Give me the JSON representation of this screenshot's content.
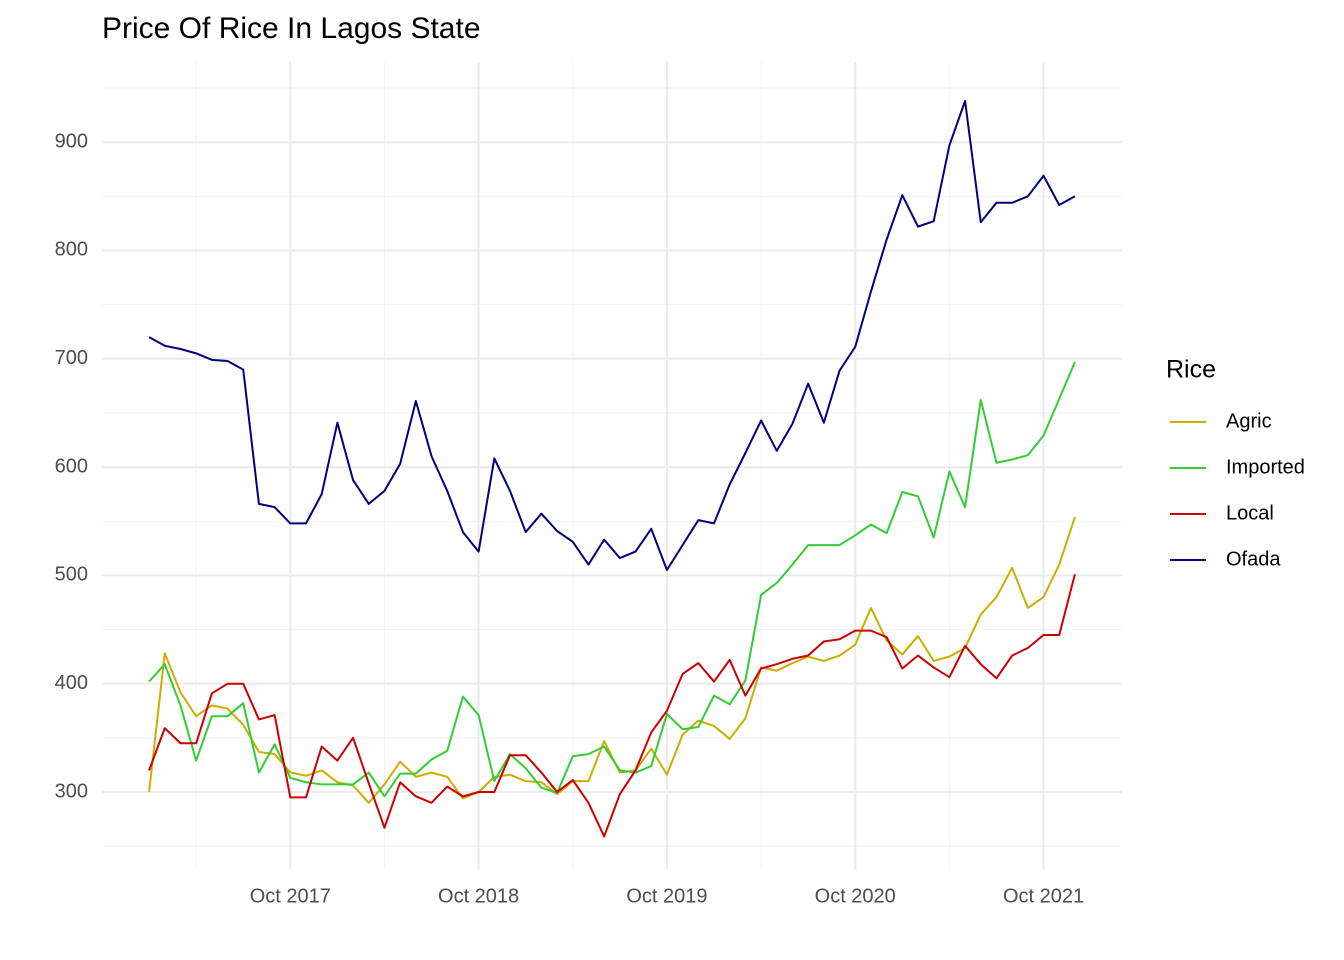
{
  "chart_data": {
    "type": "line",
    "title": "Price Of Rice In Lagos State",
    "x": [
      "2017-01",
      "2017-02",
      "2017-03",
      "2017-04",
      "2017-05",
      "2017-06",
      "2017-07",
      "2017-08",
      "2017-09",
      "2017-10",
      "2017-11",
      "2017-12",
      "2018-01",
      "2018-02",
      "2018-03",
      "2018-04",
      "2018-05",
      "2018-06",
      "2018-07",
      "2018-08",
      "2018-09",
      "2018-10",
      "2018-11",
      "2018-12",
      "2019-01",
      "2019-02",
      "2019-03",
      "2019-04",
      "2019-05",
      "2019-06",
      "2019-07",
      "2019-08",
      "2019-09",
      "2019-10",
      "2019-11",
      "2019-12",
      "2020-01",
      "2020-02",
      "2020-03",
      "2020-04",
      "2020-05",
      "2020-06",
      "2020-07",
      "2020-08",
      "2020-09",
      "2020-10",
      "2020-11",
      "2020-12",
      "2021-01",
      "2021-02",
      "2021-03",
      "2021-04",
      "2021-05",
      "2021-06",
      "2021-07",
      "2021-08",
      "2021-09",
      "2021-10",
      "2021-11",
      "2021-12"
    ],
    "legend_title": "Rice",
    "series": [
      {
        "name": "Agric",
        "color": "#cdad00",
        "values": [
          300,
          428,
          392,
          370,
          380,
          377,
          362,
          337,
          335,
          318,
          315,
          320,
          309,
          306,
          290,
          307,
          328,
          314,
          318,
          314,
          294,
          300,
          314,
          316,
          310,
          309,
          298,
          310,
          310,
          347,
          318,
          320,
          340,
          316,
          353,
          366,
          361,
          349,
          368,
          415,
          412,
          419,
          425,
          421,
          426,
          436,
          470,
          440,
          427,
          444,
          421,
          425,
          433,
          464,
          480,
          507,
          470,
          480,
          510,
          554
        ]
      },
      {
        "name": "Imported",
        "color": "#32cd32",
        "values": [
          402,
          418,
          380,
          329,
          370,
          370,
          382,
          318,
          344,
          313,
          309,
          307,
          307,
          307,
          318,
          296,
          317,
          317,
          330,
          338,
          388,
          371,
          310,
          335,
          322,
          304,
          299,
          333,
          335,
          342,
          320,
          318,
          324,
          372,
          358,
          360,
          389,
          381,
          403,
          482,
          493,
          510,
          528,
          528,
          528,
          537,
          547,
          539,
          577,
          573,
          535,
          596,
          563,
          662,
          604,
          607,
          611,
          629,
          663,
          697
        ]
      },
      {
        "name": "Local",
        "color": "#cd0000",
        "values": [
          320,
          359,
          345,
          345,
          391,
          400,
          400,
          367,
          371,
          295,
          295,
          342,
          329,
          350,
          308,
          267,
          309,
          296,
          290,
          305,
          296,
          300,
          300,
          334,
          334,
          318,
          300,
          311,
          290,
          259,
          298,
          320,
          355,
          375,
          409,
          419,
          402,
          422,
          389,
          414,
          418,
          423,
          426,
          439,
          441,
          449,
          449,
          443,
          414,
          426,
          415,
          406,
          435,
          418,
          405,
          426,
          433,
          445,
          445,
          501
        ]
      },
      {
        "name": "Ofada",
        "color": "#000080",
        "values": [
          720,
          712,
          709,
          705,
          699,
          698,
          690,
          566,
          563,
          548,
          548,
          575,
          641,
          588,
          566,
          578,
          603,
          661,
          610,
          578,
          540,
          522,
          608,
          578,
          540,
          557,
          541,
          531,
          510,
          533,
          516,
          522,
          543,
          505,
          528,
          551,
          548,
          584,
          613,
          643,
          615,
          640,
          677,
          641,
          689,
          711,
          762,
          810,
          851,
          822,
          827,
          897,
          938,
          826,
          844,
          844,
          850,
          869,
          842,
          850
        ]
      }
    ],
    "xlim": [
      "2016-10",
      "2022-03"
    ],
    "xticks": [
      {
        "value": "2017-10",
        "label": "Oct 2017"
      },
      {
        "value": "2018-10",
        "label": "Oct 2018"
      },
      {
        "value": "2019-10",
        "label": "Oct 2019"
      },
      {
        "value": "2020-10",
        "label": "Oct 2020"
      },
      {
        "value": "2021-10",
        "label": "Oct 2021"
      }
    ],
    "ylim": [
      228,
      974
    ],
    "yticks": [
      300,
      400,
      500,
      600,
      700,
      800,
      900
    ],
    "grid": true,
    "legend": "right"
  }
}
